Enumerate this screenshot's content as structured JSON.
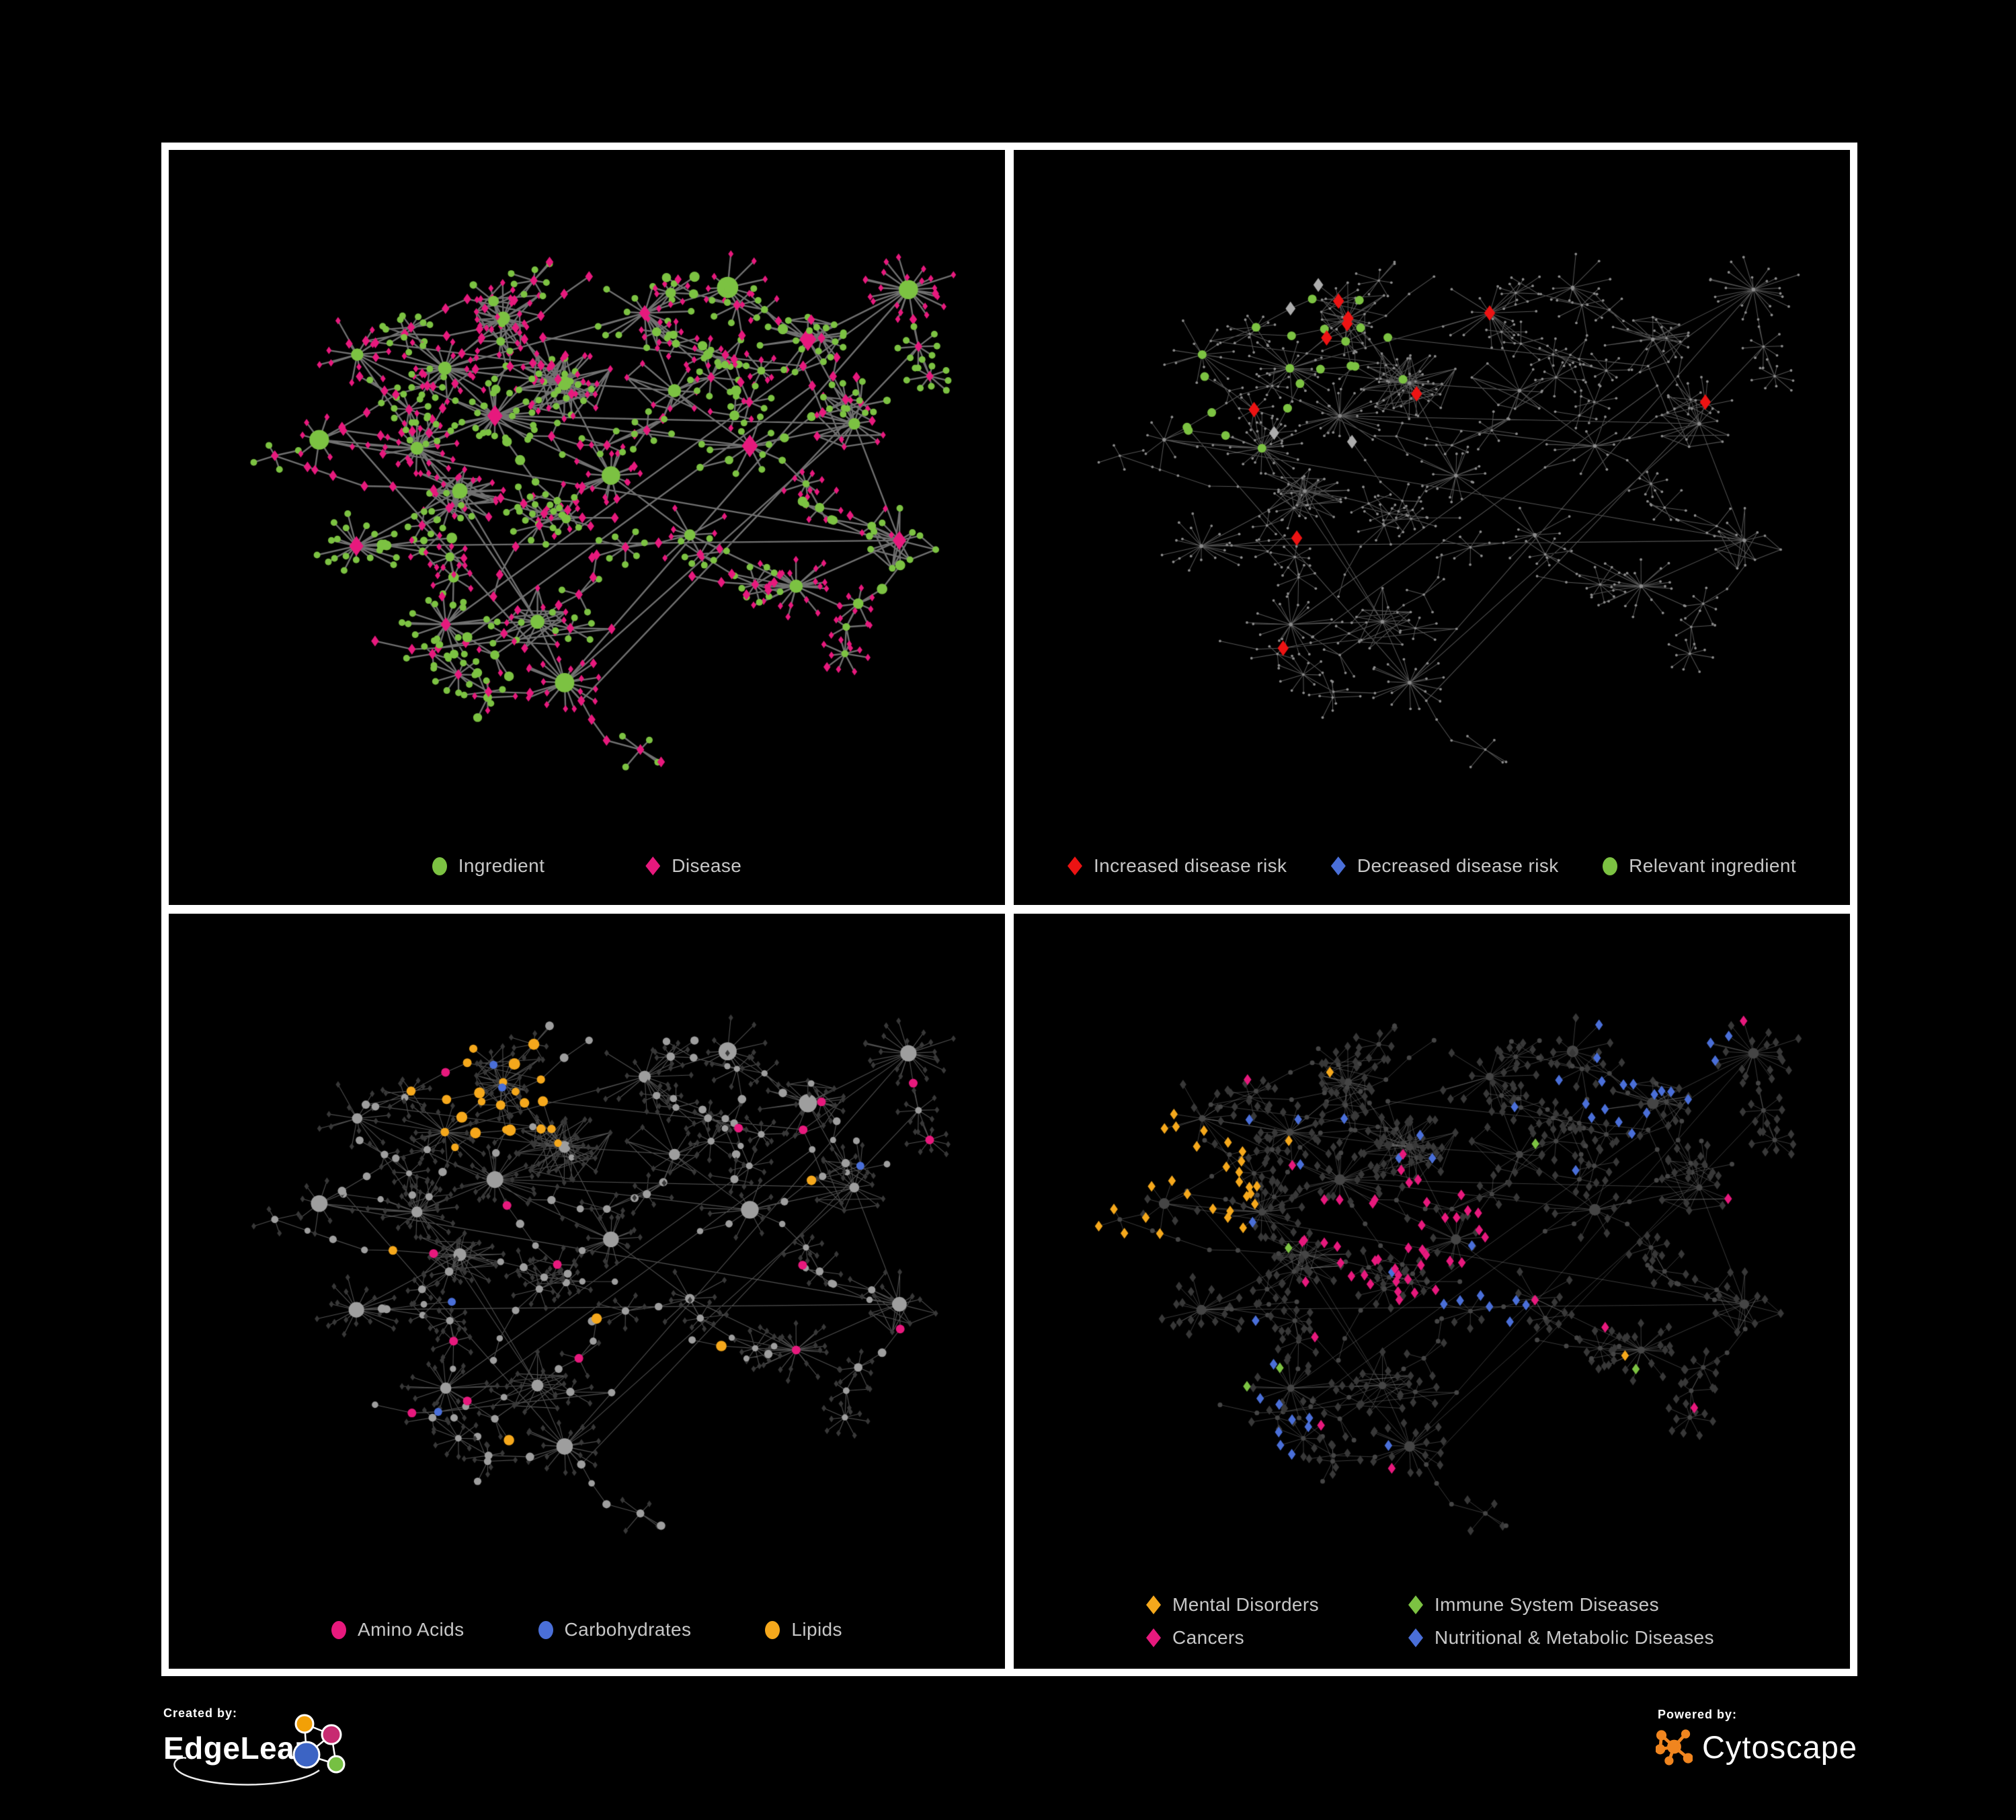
{
  "panels": [
    {
      "id": "ingredient-disease-network",
      "legend": [
        {
          "label": "Ingredient",
          "shape": "circle",
          "color": "#7CC242"
        },
        {
          "label": "Disease",
          "shape": "diamond",
          "color": "#E7197D"
        }
      ]
    },
    {
      "id": "disease-risk-network",
      "legend": [
        {
          "label": "Increased disease risk",
          "shape": "diamond",
          "color": "#EC1313"
        },
        {
          "label": "Decreased disease risk",
          "shape": "diamond",
          "color": "#4A6FD8"
        },
        {
          "label": "Relevant ingredient",
          "shape": "circle",
          "color": "#7CC242"
        }
      ]
    },
    {
      "id": "ingredient-classes-network",
      "legend": [
        {
          "label": "Amino Acids",
          "shape": "circle",
          "color": "#E7197D"
        },
        {
          "label": "Carbohydrates",
          "shape": "circle",
          "color": "#4A6FD8"
        },
        {
          "label": "Lipids",
          "shape": "circle",
          "color": "#F5A81C"
        }
      ]
    },
    {
      "id": "disease-classes-network",
      "legend": [
        {
          "label": "Mental Disorders",
          "shape": "diamond",
          "color": "#F5A81C"
        },
        {
          "label": "Immune System Diseases",
          "shape": "diamond",
          "color": "#7CC242"
        },
        {
          "label": "Cancers",
          "shape": "diamond",
          "color": "#E7197D"
        },
        {
          "label": "Nutritional & Metabolic Diseases",
          "shape": "diamond",
          "color": "#4A6FD8"
        }
      ]
    }
  ],
  "footer": {
    "created_by_label": "Created by:",
    "created_by_name": "EdgeLeap",
    "powered_by_label": "Powered by:",
    "powered_by_name": "Cytoscape"
  },
  "colors": {
    "green": "#7CC242",
    "pink": "#E7197D",
    "red": "#EC1313",
    "blue": "#4A6FD8",
    "orange": "#F5A81C",
    "silver": "#ACACAC",
    "gray_node": "#9E9E9E",
    "tiny_gray_node": "#8C8C8C",
    "dark_node": "#383838",
    "dark_base": "#454545",
    "panel_background": "#000000",
    "border_white": "#FFFFFF",
    "legend_text": "#C7C7C7",
    "edgeleap_logo": {
      "orange": "#F2A007",
      "pink": "#C72B71",
      "blue": "#3C64C4",
      "green": "#76C043"
    },
    "cytoscape_logo_orange": "#F0851F"
  }
}
